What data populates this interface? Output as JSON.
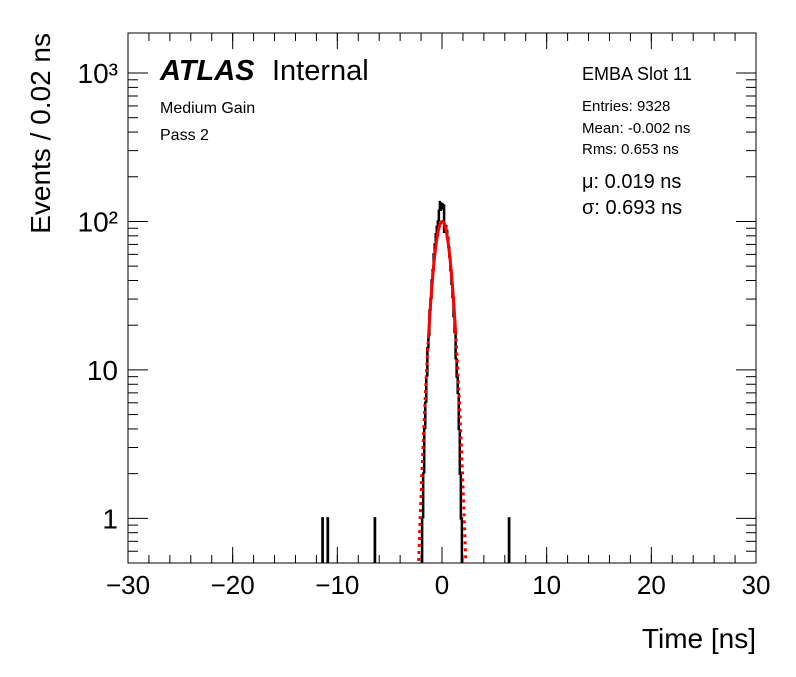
{
  "chart_data": {
    "type": "histogram",
    "title": "ATLAS",
    "subtitle": "Internal",
    "annotations": [
      "Medium Gain",
      "Pass 2"
    ],
    "stats_title": "EMBA Slot 11",
    "stats": [
      "Entries: 9328",
      "Mean: -0.002 ns",
      "Rms: 0.653 ns"
    ],
    "fit_labels": [
      "μ: 0.019 ns",
      "σ: 0.693 ns"
    ],
    "xlabel": "Time [ns]",
    "ylabel": "Events / 0.02 ns",
    "bins": [
      -30,
      -11.42,
      -11.4,
      -10.92,
      -10.9,
      -6.42,
      -6.4,
      -1.9,
      -1.8,
      -1.7,
      -1.6,
      -1.5,
      -1.4,
      -1.3,
      -1.2,
      -1.1,
      -1.0,
      -0.9,
      -0.8,
      -0.7,
      -0.6,
      -0.5,
      -0.4,
      -0.3,
      -0.2,
      -0.1,
      0,
      0.1,
      0.2,
      0.3,
      0.4,
      0.5,
      0.6,
      0.7,
      0.8,
      0.9,
      1.0,
      1.1,
      1.2,
      1.3,
      1.4,
      1.5,
      1.6,
      1.7,
      1.8,
      1.9,
      6.4,
      6.42,
      30
    ],
    "counts": [
      0,
      1,
      0,
      1,
      0,
      1,
      0,
      1,
      2,
      4,
      6,
      9,
      14,
      17,
      25,
      30,
      40,
      47,
      60,
      70,
      82,
      92,
      100,
      118,
      135,
      120,
      125,
      130,
      85,
      95,
      88,
      79,
      68,
      58,
      47,
      38,
      31,
      23,
      18,
      12,
      9,
      7,
      4,
      2,
      1,
      0,
      1,
      0
    ],
    "color": "#000000",
    "fit": {
      "amplitude": 100,
      "mean": 0.019,
      "sigma": 0.693,
      "range": [
        -1.3,
        1.3
      ],
      "color": "#ff0000"
    },
    "xlim": [
      -30,
      30
    ],
    "xticks": [
      {
        "value": -30,
        "label": "−30"
      },
      {
        "value": -20,
        "label": "−20"
      },
      {
        "value": -10,
        "label": "−10"
      },
      0,
      10,
      20,
      30
    ],
    "ylim": [
      0.5,
      1860
    ],
    "log_y": true,
    "yticks": [
      1,
      10,
      {
        "value": 100,
        "label": "10²"
      },
      {
        "value": 1000,
        "label": "10³"
      }
    ]
  }
}
